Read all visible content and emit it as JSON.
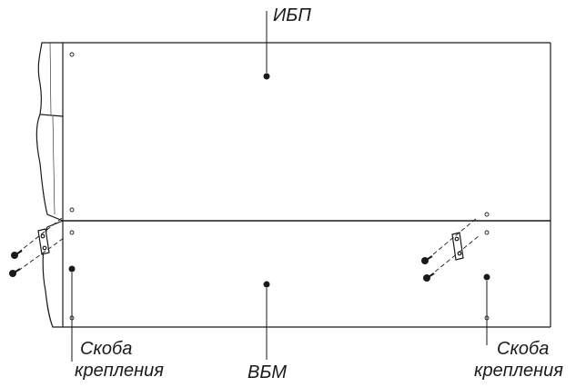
{
  "labels": {
    "ups": "ИБП",
    "battery_module": "ВБМ",
    "bracket_left_line1": "Скоба",
    "bracket_left_line2": "крепления",
    "bracket_right_line1": "Скоба",
    "bracket_right_line2": "крепления"
  },
  "colors": {
    "line": "#1a1a1a",
    "background": "#ffffff"
  }
}
